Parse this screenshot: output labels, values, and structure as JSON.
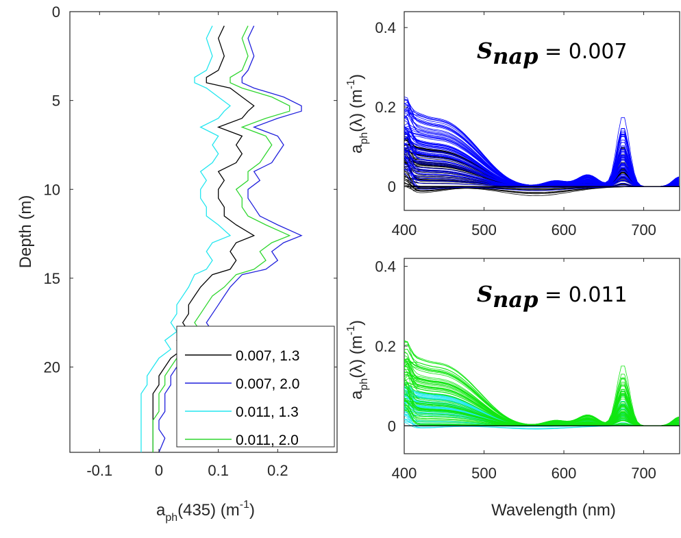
{
  "chart_data": [
    {
      "id": "depth-profile",
      "type": "line",
      "xlabel": "a",
      "xlabel_sub": "ph",
      "xlabel_rest": "(435) (m",
      "xlabel_sup": "-1",
      "xlabel_end": ")",
      "ylabel": "Depth (m)",
      "xlim": [
        -0.15,
        0.3
      ],
      "ylim": [
        0,
        24.8
      ],
      "y_reversed": true,
      "xticks": [
        -0.1,
        0,
        0.1,
        0.2
      ],
      "xtick_labels": [
        "-0.1",
        "0",
        "0.1",
        "0.2"
      ],
      "yticks": [
        0,
        5,
        10,
        15,
        20
      ],
      "ytick_labels": [
        "0",
        "5",
        "10",
        "15",
        "20"
      ],
      "legend_position": "bottom-right",
      "depth": [
        0.8,
        1.5,
        2.5,
        3.3,
        3.7,
        4.0,
        4.3,
        4.8,
        5.3,
        5.6,
        6.0,
        6.5,
        7.0,
        7.5,
        8.0,
        8.5,
        9.0,
        9.5,
        10.0,
        10.5,
        11.0,
        11.5,
        12.0,
        12.6,
        13.0,
        13.5,
        14.0,
        14.5,
        14.8,
        15.5,
        16.0,
        16.5,
        17.0,
        17.5,
        18.0,
        18.5,
        19.0,
        19.5,
        20.0,
        20.5,
        21.0,
        21.5,
        22.0,
        22.5,
        23.0,
        23.5,
        24.0,
        24.8
      ],
      "series": [
        {
          "name": "0.007, 1.3",
          "color": "#000000",
          "values": [
            0.11,
            0.1,
            0.11,
            0.1,
            0.08,
            0.08,
            0.12,
            0.14,
            0.16,
            0.15,
            0.14,
            0.1,
            0.14,
            0.13,
            0.14,
            0.13,
            0.1,
            0.11,
            0.1,
            0.1,
            0.11,
            0.11,
            0.13,
            0.16,
            0.13,
            0.12,
            0.13,
            0.12,
            0.09,
            0.07,
            0.06,
            0.05,
            0.05,
            0.04,
            0.05,
            0.03,
            0.04,
            0.02,
            0.01,
            0.0,
            0.0,
            -0.01,
            -0.01,
            -0.01,
            -0.01,
            -0.01,
            -0.01,
            -0.01
          ]
        },
        {
          "name": "0.007, 2.0",
          "color": "#1f1fdc",
          "values": [
            0.16,
            0.15,
            0.16,
            0.15,
            0.14,
            0.14,
            0.16,
            0.21,
            0.24,
            0.24,
            0.2,
            0.16,
            0.2,
            0.21,
            0.2,
            0.19,
            0.16,
            0.17,
            0.15,
            0.15,
            0.16,
            0.17,
            0.2,
            0.24,
            0.21,
            0.19,
            0.2,
            0.18,
            0.14,
            0.12,
            0.11,
            0.1,
            0.09,
            0.08,
            0.09,
            0.07,
            0.07,
            0.05,
            0.03,
            0.02,
            0.02,
            0.01,
            0.01,
            0.01,
            0.0,
            0.0,
            0.01,
            0.0
          ]
        },
        {
          "name": "0.011, 1.3",
          "color": "#22e6ef",
          "values": [
            0.09,
            0.08,
            0.09,
            0.08,
            0.06,
            0.06,
            0.08,
            0.1,
            0.12,
            0.11,
            0.1,
            0.07,
            0.1,
            0.09,
            0.1,
            0.09,
            0.07,
            0.08,
            0.07,
            0.07,
            0.08,
            0.08,
            0.1,
            0.12,
            0.09,
            0.08,
            0.09,
            0.08,
            0.06,
            0.05,
            0.04,
            0.03,
            0.03,
            0.02,
            0.03,
            0.01,
            0.02,
            0.0,
            -0.01,
            -0.02,
            -0.02,
            -0.03,
            -0.03,
            -0.03,
            -0.03,
            -0.03,
            -0.03,
            -0.03
          ]
        },
        {
          "name": "0.011, 2.0",
          "color": "#2ed62e",
          "values": [
            0.15,
            0.14,
            0.15,
            0.14,
            0.12,
            0.12,
            0.14,
            0.19,
            0.22,
            0.22,
            0.18,
            0.14,
            0.18,
            0.19,
            0.18,
            0.17,
            0.15,
            0.15,
            0.13,
            0.14,
            0.14,
            0.15,
            0.18,
            0.22,
            0.19,
            0.17,
            0.18,
            0.16,
            0.13,
            0.11,
            0.09,
            0.08,
            0.07,
            0.06,
            0.07,
            0.05,
            0.05,
            0.03,
            0.02,
            0.01,
            0.01,
            0.0,
            0.0,
            0.0,
            -0.01,
            -0.01,
            -0.01,
            -0.01
          ]
        }
      ]
    },
    {
      "id": "spectra-top",
      "type": "line",
      "annotation_symbol": "S",
      "annotation_sub": "nap",
      "annotation_value": " = 0.007",
      "ylabel_main": "a",
      "ylabel_sub": "ph",
      "ylabel_rest": "(λ) (m",
      "ylabel_sup": "-1",
      "ylabel_end": ")",
      "xlim": [
        400,
        745
      ],
      "ylim": [
        -0.06,
        0.44
      ],
      "xticks": [
        400,
        500,
        600,
        700
      ],
      "xtick_labels": [
        "400",
        "500",
        "600",
        "700"
      ],
      "yticks": [
        0,
        0.2,
        0.4
      ],
      "ytick_labels": [
        "0",
        "0.2",
        "0.4"
      ],
      "zero_line": true,
      "families": [
        {
          "color": "#000000",
          "count": 60,
          "amp_min": -0.04,
          "amp_max": 0.14
        },
        {
          "color": "#0000ff",
          "count": 70,
          "amp_min": -0.02,
          "amp_max": 0.25
        }
      ]
    },
    {
      "id": "spectra-bottom",
      "type": "line",
      "annotation_symbol": "S",
      "annotation_sub": "nap",
      "annotation_value": " = 0.011",
      "xlabel": "Wavelength (nm)",
      "ylabel_main": "a",
      "ylabel_sub": "ph",
      "ylabel_rest": "(λ) (m",
      "ylabel_sup": "-1",
      "ylabel_end": ")",
      "xlim": [
        400,
        745
      ],
      "ylim": [
        -0.07,
        0.42
      ],
      "xticks": [
        400,
        500,
        600,
        700
      ],
      "xtick_labels": [
        "400",
        "500",
        "600",
        "700"
      ],
      "yticks": [
        0,
        0.2,
        0.4
      ],
      "ytick_labels": [
        "0",
        "0.2",
        "0.4"
      ],
      "zero_line": true,
      "families": [
        {
          "color": "#22e6ef",
          "count": 60,
          "amp_min": -0.03,
          "amp_max": 0.12
        },
        {
          "color": "#11e611",
          "count": 70,
          "amp_min": -0.01,
          "amp_max": 0.23
        }
      ]
    }
  ]
}
